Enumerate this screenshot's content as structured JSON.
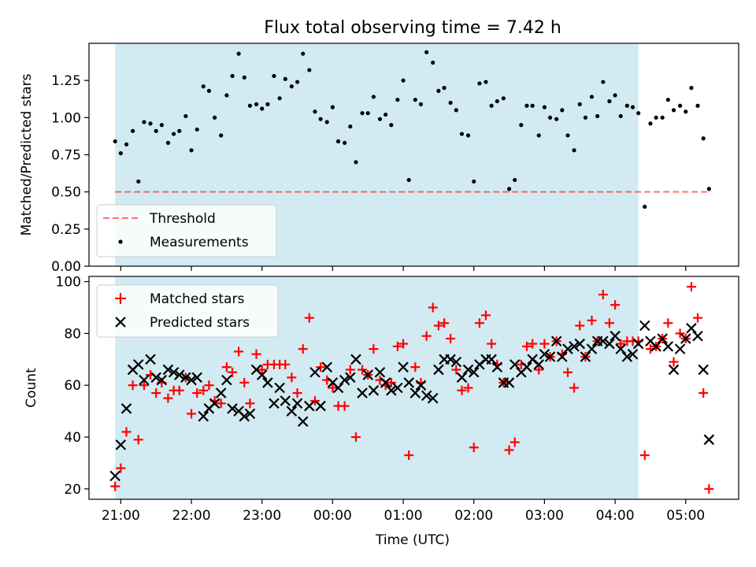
{
  "title": "Flux total observing time = 7.42 h",
  "colors": {
    "observing_band": "#add8e6",
    "threshold": "#ff0000",
    "measurements": "#000000",
    "matched": "#ff0000",
    "predicted": "#000000"
  },
  "chart_data": [
    {
      "type": "scatter",
      "ylabel": "Matched/Predicted stars",
      "ylim": [
        0,
        1.5
      ],
      "yticks": [
        0.0,
        0.25,
        0.5,
        0.75,
        1.0,
        1.25
      ],
      "ytick_labels": [
        "0.00",
        "0.25",
        "0.50",
        "0.75",
        "1.00",
        "1.25"
      ],
      "xlim_hours": [
        20.55,
        29.75
      ],
      "observing_band_hours": [
        20.92,
        28.33
      ],
      "threshold": {
        "name": "Threshold",
        "x_hours": [
          20.92,
          29.33
        ],
        "y": 0.5
      },
      "legend": [
        "Threshold",
        "Measurements"
      ],
      "legend_loc": "lower-left",
      "series": [
        {
          "name": "Measurements",
          "x_hours": [
            20.92,
            21.0,
            21.08,
            21.17,
            21.25,
            21.33,
            21.42,
            21.5,
            21.58,
            21.67,
            21.75,
            21.83,
            21.92,
            22.0,
            22.08,
            22.17,
            22.25,
            22.33,
            22.42,
            22.5,
            22.58,
            22.67,
            22.75,
            22.83,
            22.92,
            23.0,
            23.08,
            23.17,
            23.25,
            23.33,
            23.42,
            23.5,
            23.58,
            23.67,
            23.75,
            23.83,
            23.92,
            24.0,
            24.08,
            24.17,
            24.25,
            24.33,
            24.42,
            24.5,
            24.58,
            24.67,
            24.75,
            24.83,
            24.92,
            25.0,
            25.08,
            25.17,
            25.25,
            25.33,
            25.42,
            25.5,
            25.58,
            25.67,
            25.75,
            25.83,
            25.92,
            26.0,
            26.08,
            26.17,
            26.25,
            26.33,
            26.42,
            26.5,
            26.58,
            26.67,
            26.75,
            26.83,
            26.92,
            27.0,
            27.08,
            27.17,
            27.25,
            27.33,
            27.42,
            27.5,
            27.58,
            27.67,
            27.75,
            27.83,
            27.92,
            28.0,
            28.08,
            28.17,
            28.25,
            28.33,
            28.42,
            28.5,
            28.58,
            28.67,
            28.75,
            28.83,
            28.92,
            29.0,
            29.08,
            29.17,
            29.25,
            29.33
          ],
          "y": [
            0.84,
            0.76,
            0.82,
            0.91,
            0.57,
            0.97,
            0.96,
            0.91,
            0.95,
            0.83,
            0.89,
            0.91,
            1.01,
            0.78,
            0.92,
            1.21,
            1.18,
            1.0,
            0.88,
            1.15,
            1.28,
            1.43,
            1.27,
            1.08,
            1.09,
            1.06,
            1.09,
            1.28,
            1.13,
            1.26,
            1.21,
            1.24,
            1.43,
            1.32,
            1.04,
            0.99,
            0.97,
            1.07,
            0.84,
            0.83,
            0.94,
            0.7,
            1.03,
            1.03,
            1.14,
            0.99,
            1.02,
            0.95,
            1.12,
            1.25,
            0.58,
            1.12,
            1.09,
            1.44,
            1.37,
            1.18,
            1.2,
            1.1,
            1.05,
            0.89,
            0.88,
            0.57,
            1.23,
            1.24,
            1.08,
            1.11,
            1.13,
            0.52,
            0.58,
            0.95,
            1.08,
            1.08,
            0.88,
            1.07,
            1.0,
            0.99,
            1.05,
            0.88,
            0.78,
            1.09,
            1.0,
            1.14,
            1.01,
            1.24,
            1.11,
            1.15,
            1.01,
            1.08,
            1.07,
            1.03,
            0.4,
            0.96,
            1.0,
            1.0,
            1.12,
            1.05,
            1.08,
            1.04,
            1.2,
            1.08,
            0.86,
            0.52
          ]
        }
      ]
    },
    {
      "type": "scatter",
      "xlabel": "Time (UTC)",
      "ylabel": "Count",
      "ylim": [
        16,
        102
      ],
      "yticks": [
        20,
        40,
        60,
        80,
        100
      ],
      "xtick_hours": [
        21,
        22,
        23,
        24,
        25,
        26,
        27,
        28,
        29
      ],
      "xtick_labels": [
        "21:00",
        "22:00",
        "23:00",
        "00:00",
        "01:00",
        "02:00",
        "03:00",
        "04:00",
        "05:00"
      ],
      "xlim_hours": [
        20.55,
        29.75
      ],
      "observing_band_hours": [
        20.92,
        28.33
      ],
      "legend": [
        "Matched stars",
        "Predicted stars"
      ],
      "legend_loc": "upper-left",
      "series": [
        {
          "name": "Matched stars",
          "x_hours": [
            20.92,
            21.0,
            21.08,
            21.17,
            21.25,
            21.33,
            21.42,
            21.5,
            21.58,
            21.67,
            21.75,
            21.83,
            21.92,
            22.0,
            22.08,
            22.17,
            22.25,
            22.33,
            22.42,
            22.5,
            22.58,
            22.67,
            22.75,
            22.83,
            22.92,
            23.0,
            23.08,
            23.17,
            23.25,
            23.33,
            23.42,
            23.5,
            23.58,
            23.67,
            23.75,
            23.83,
            23.92,
            24.0,
            24.08,
            24.17,
            24.25,
            24.33,
            24.42,
            24.5,
            24.58,
            24.67,
            24.75,
            24.83,
            24.92,
            25.0,
            25.08,
            25.17,
            25.25,
            25.33,
            25.42,
            25.5,
            25.58,
            25.67,
            25.75,
            25.83,
            25.92,
            26.0,
            26.08,
            26.17,
            26.25,
            26.33,
            26.42,
            26.5,
            26.58,
            26.67,
            26.75,
            26.83,
            26.92,
            27.0,
            27.08,
            27.17,
            27.25,
            27.33,
            27.42,
            27.5,
            27.58,
            27.67,
            27.75,
            27.83,
            27.92,
            28.0,
            28.08,
            28.17,
            28.25,
            28.33,
            28.42,
            28.5,
            28.58,
            28.67,
            28.75,
            28.83,
            28.92,
            29.0,
            29.08,
            29.17,
            29.25,
            29.33
          ],
          "y": [
            21,
            28,
            42,
            60,
            39,
            60,
            64,
            57,
            61,
            55,
            58,
            58,
            63,
            49,
            57,
            58,
            60,
            54,
            53,
            67,
            65,
            73,
            61,
            53,
            72,
            66,
            68,
            68,
            68,
            68,
            63,
            57,
            74,
            86,
            54,
            67,
            62,
            59,
            52,
            52,
            66,
            40,
            66,
            64,
            74,
            62,
            60,
            61,
            75,
            76,
            33,
            67,
            61,
            79,
            90,
            83,
            84,
            78,
            66,
            58,
            59,
            36,
            84,
            87,
            76,
            68,
            61,
            35,
            38,
            68,
            75,
            76,
            66,
            76,
            71,
            77,
            72,
            65,
            59,
            83,
            71,
            85,
            77,
            95,
            84,
            91,
            76,
            77,
            77,
            77,
            33,
            74,
            75,
            78,
            84,
            69,
            80,
            78,
            98,
            86,
            57,
            20
          ]
        },
        {
          "name": "Predicted stars",
          "x_hours": [
            20.92,
            21.0,
            21.08,
            21.17,
            21.25,
            21.33,
            21.42,
            21.5,
            21.58,
            21.67,
            21.75,
            21.83,
            21.92,
            22.0,
            22.08,
            22.17,
            22.25,
            22.33,
            22.42,
            22.5,
            22.58,
            22.67,
            22.75,
            22.83,
            22.92,
            23.0,
            23.08,
            23.17,
            23.25,
            23.33,
            23.42,
            23.5,
            23.58,
            23.67,
            23.75,
            23.83,
            23.92,
            24.0,
            24.08,
            24.17,
            24.25,
            24.33,
            24.42,
            24.5,
            24.58,
            24.67,
            24.75,
            24.83,
            24.92,
            25.0,
            25.08,
            25.17,
            25.25,
            25.33,
            25.42,
            25.5,
            25.58,
            25.67,
            25.75,
            25.83,
            25.92,
            26.0,
            26.08,
            26.17,
            26.25,
            26.33,
            26.42,
            26.5,
            26.58,
            26.67,
            26.75,
            26.83,
            26.92,
            27.0,
            27.08,
            27.17,
            27.25,
            27.33,
            27.42,
            27.5,
            27.58,
            27.67,
            27.75,
            27.83,
            27.92,
            28.0,
            28.08,
            28.17,
            28.25,
            28.33,
            28.42,
            28.5,
            28.58,
            28.67,
            28.75,
            28.83,
            28.92,
            29.0,
            29.08,
            29.17,
            29.25,
            29.33
          ],
          "y": [
            25,
            37,
            51,
            66,
            68,
            62,
            70,
            63,
            62,
            66,
            65,
            64,
            63,
            62,
            63,
            48,
            51,
            53,
            57,
            62,
            51,
            50,
            48,
            49,
            66,
            64,
            61,
            53,
            59,
            54,
            50,
            53,
            46,
            52,
            65,
            52,
            67,
            61,
            59,
            62,
            63,
            70,
            57,
            64,
            58,
            65,
            61,
            58,
            59,
            67,
            61,
            57,
            60,
            56,
            55,
            66,
            70,
            70,
            69,
            63,
            66,
            65,
            68,
            70,
            70,
            67,
            61,
            61,
            68,
            65,
            67,
            70,
            68,
            72,
            71,
            77,
            71,
            74,
            75,
            76,
            71,
            74,
            77,
            77,
            76,
            79,
            74,
            71,
            72,
            76,
            83,
            77,
            75,
            78,
            75,
            66,
            74,
            78,
            82,
            79,
            66,
            39
          ]
        }
      ]
    }
  ]
}
